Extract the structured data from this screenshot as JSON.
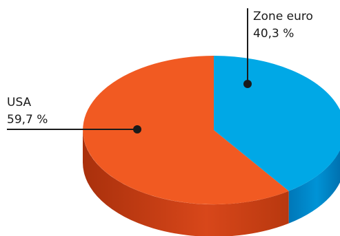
{
  "chart_data": {
    "type": "pie",
    "title": "",
    "slices": [
      {
        "label": "Zone euro",
        "value_label": "40,3 %",
        "value": 40.3,
        "color": "#00a8e6",
        "side_color": "#0085c8"
      },
      {
        "label": "USA",
        "value_label": "59,7 %",
        "value": 59.7,
        "color": "#f15a22",
        "side_color": "#c83d12"
      }
    ],
    "style": "3d-tilted",
    "legend": "none"
  }
}
